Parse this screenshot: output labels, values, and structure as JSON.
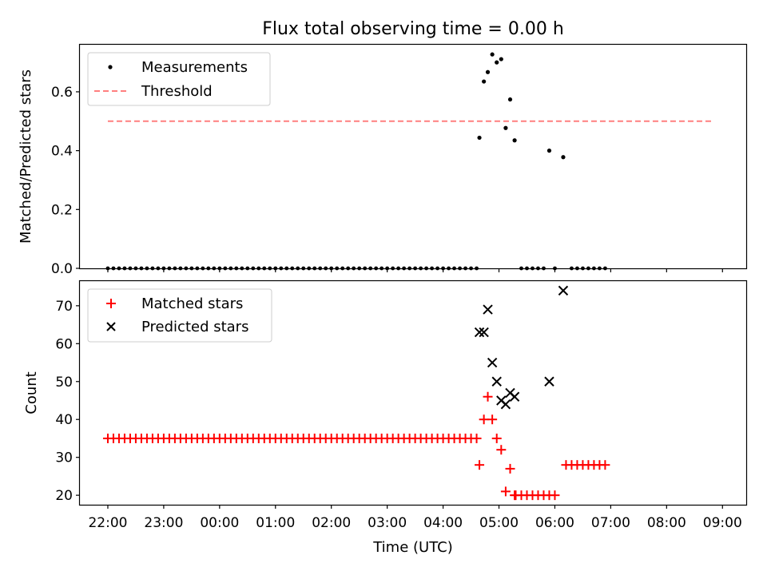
{
  "chart_data": [
    {
      "type": "scatter",
      "title": "Flux total observing time = 0.00 h",
      "xlabel": "",
      "ylabel": "Matched/Predicted stars",
      "xlim": [
        -0.5,
        11.425
      ],
      "ylim": [
        0,
        0.76
      ],
      "yticks": [
        0.0,
        0.2,
        0.4,
        0.6
      ],
      "ytick_labels": [
        "0.0",
        "0.2",
        "0.4",
        "0.6"
      ],
      "x_unit": "hours since 22:00 UTC",
      "legend": {
        "position": "top-left",
        "entries": [
          "Measurements",
          "Threshold"
        ]
      },
      "colors": {
        "measurements": "#000000",
        "threshold": "#ff7f7f"
      },
      "threshold": {
        "name": "Threshold",
        "y": 0.5,
        "x_range": [
          0.0,
          10.85
        ]
      },
      "series": [
        {
          "name": "Measurements",
          "marker": "dot",
          "color": "#000000",
          "x": [
            6.65,
            6.73,
            6.8,
            6.88,
            6.96,
            7.04,
            7.12,
            7.2,
            7.28,
            7.9,
            8.15
          ],
          "y": [
            0.444,
            0.635,
            0.667,
            0.727,
            0.7,
            0.711,
            0.477,
            0.574,
            0.435,
            0.4,
            0.378
          ]
        }
      ],
      "zero_runs": [
        {
          "from": 0.0,
          "to": 6.6,
          "step": 0.1
        },
        {
          "from": 7.4,
          "to": 7.8,
          "step": 0.1
        },
        {
          "from": 8.0,
          "to": 8.0,
          "step": 0.1
        },
        {
          "from": 8.3,
          "to": 8.9,
          "step": 0.1
        }
      ]
    },
    {
      "type": "scatter",
      "title": "",
      "xlabel": "Time (UTC)",
      "ylabel": "Count",
      "xlim": [
        -0.5,
        11.425
      ],
      "ylim": [
        17.5,
        76.5
      ],
      "yticks": [
        20,
        30,
        40,
        50,
        60,
        70
      ],
      "ytick_labels": [
        "20",
        "30",
        "40",
        "50",
        "60",
        "70"
      ],
      "xticks": [
        0,
        1,
        2,
        3,
        4,
        5,
        6,
        7,
        8,
        9,
        10,
        11
      ],
      "xtick_labels": [
        "22:00",
        "23:00",
        "00:00",
        "01:00",
        "02:00",
        "03:00",
        "04:00",
        "05:00",
        "06:00",
        "07:00",
        "08:00",
        "09:00"
      ],
      "x_unit": "hours since 22:00 UTC",
      "legend": {
        "position": "top-left",
        "entries": [
          "Matched stars",
          "Predicted stars"
        ]
      },
      "colors": {
        "matched": "#ff0000",
        "predicted": "#000000"
      },
      "series": [
        {
          "name": "Matched stars",
          "marker": "plus",
          "color": "#ff0000",
          "baseline_runs": [
            {
              "from": 0.0,
              "to": 6.6,
              "step": 0.1,
              "y": 35
            },
            {
              "from": 7.4,
              "to": 8.0,
              "step": 0.1,
              "y": 20
            },
            {
              "from": 8.2,
              "to": 8.9,
              "step": 0.1,
              "y": 28
            }
          ],
          "x": [
            6.65,
            6.73,
            6.8,
            6.88,
            6.96,
            7.04,
            7.12,
            7.2,
            7.28,
            7.3
          ],
          "y": [
            28,
            40,
            46,
            40,
            35,
            32,
            21,
            27,
            20,
            20
          ]
        },
        {
          "name": "Predicted stars",
          "marker": "x",
          "color": "#000000",
          "x": [
            6.65,
            6.73,
            6.8,
            6.88,
            6.96,
            7.04,
            7.12,
            7.2,
            7.28,
            7.9,
            8.15
          ],
          "y": [
            63,
            63,
            69,
            55,
            50,
            45,
            44,
            47,
            46,
            50,
            74
          ]
        }
      ]
    }
  ]
}
